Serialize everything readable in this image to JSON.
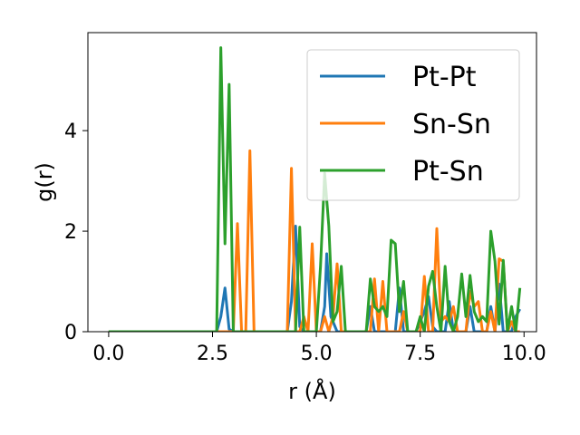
{
  "chart_data": {
    "type": "line",
    "xlabel": "r (Å)",
    "ylabel": "g(r)",
    "xlim": [
      -0.5,
      10.3
    ],
    "ylim": [
      0,
      5.95
    ],
    "xticks": [
      0.0,
      2.5,
      5.0,
      7.5,
      10.0
    ],
    "xtick_labels": [
      "0.0",
      "2.5",
      "5.0",
      "7.5",
      "10.0"
    ],
    "yticks": [
      0,
      2,
      4
    ],
    "ytick_labels": [
      "0",
      "2",
      "4"
    ],
    "grid": false,
    "legend_position": "upper right",
    "series": [
      {
        "name": "Pt-Pt",
        "color": "#1f77b4",
        "points": [
          [
            0.0,
            0
          ],
          [
            2.6,
            0
          ],
          [
            2.7,
            0.3
          ],
          [
            2.8,
            0.87
          ],
          [
            2.9,
            0.05
          ],
          [
            3.0,
            0
          ],
          [
            4.3,
            0
          ],
          [
            4.4,
            0.6
          ],
          [
            4.5,
            2.1
          ],
          [
            4.6,
            0.1
          ],
          [
            4.7,
            0
          ],
          [
            5.1,
            0
          ],
          [
            5.2,
            0.5
          ],
          [
            5.25,
            1.55
          ],
          [
            5.35,
            0.3
          ],
          [
            5.5,
            0
          ],
          [
            6.2,
            0
          ],
          [
            6.3,
            0.5
          ],
          [
            6.4,
            0
          ],
          [
            6.9,
            0
          ],
          [
            7.0,
            0.87
          ],
          [
            7.1,
            0
          ],
          [
            7.4,
            0
          ],
          [
            7.6,
            0.4
          ],
          [
            7.7,
            0.7
          ],
          [
            7.8,
            0.1
          ],
          [
            7.9,
            0
          ],
          [
            8.1,
            0
          ],
          [
            8.2,
            0.6
          ],
          [
            8.3,
            0
          ],
          [
            8.6,
            0
          ],
          [
            8.7,
            0.5
          ],
          [
            8.8,
            0
          ],
          [
            9.1,
            0
          ],
          [
            9.2,
            0.5
          ],
          [
            9.3,
            0
          ],
          [
            9.4,
            0.95
          ],
          [
            9.5,
            0
          ],
          [
            9.7,
            0
          ],
          [
            9.8,
            0.3
          ],
          [
            9.9,
            0.45
          ]
        ]
      },
      {
        "name": "Sn-Sn",
        "color": "#ff7f0e",
        "points": [
          [
            0.0,
            0
          ],
          [
            3.0,
            0
          ],
          [
            3.1,
            2.15
          ],
          [
            3.2,
            0
          ],
          [
            3.3,
            0
          ],
          [
            3.4,
            3.6
          ],
          [
            3.5,
            0
          ],
          [
            4.3,
            0
          ],
          [
            4.4,
            3.25
          ],
          [
            4.5,
            0
          ],
          [
            4.6,
            0
          ],
          [
            4.7,
            0.3
          ],
          [
            4.8,
            0
          ],
          [
            4.9,
            1.75
          ],
          [
            5.0,
            0
          ],
          [
            5.1,
            0
          ],
          [
            5.2,
            0.3
          ],
          [
            5.3,
            0
          ],
          [
            5.4,
            0.3
          ],
          [
            5.5,
            1.35
          ],
          [
            5.6,
            0
          ],
          [
            6.3,
            0
          ],
          [
            6.4,
            1.05
          ],
          [
            6.5,
            0
          ],
          [
            6.6,
            1.0
          ],
          [
            6.7,
            0
          ],
          [
            7.0,
            0
          ],
          [
            7.1,
            0.4
          ],
          [
            7.2,
            0
          ],
          [
            7.5,
            0
          ],
          [
            7.6,
            1.1
          ],
          [
            7.7,
            0
          ],
          [
            7.8,
            0
          ],
          [
            7.9,
            2.05
          ],
          [
            8.0,
            0.2
          ],
          [
            8.1,
            0.3
          ],
          [
            8.2,
            0.2
          ],
          [
            8.3,
            0.5
          ],
          [
            8.4,
            0
          ],
          [
            8.6,
            0
          ],
          [
            8.7,
            0.8
          ],
          [
            8.8,
            0.5
          ],
          [
            8.9,
            0.6
          ],
          [
            9.0,
            0
          ],
          [
            9.1,
            0
          ],
          [
            9.2,
            0.4
          ],
          [
            9.3,
            0
          ],
          [
            9.4,
            1.45
          ],
          [
            9.5,
            1.4
          ],
          [
            9.6,
            0
          ],
          [
            9.7,
            0.2
          ],
          [
            9.8,
            0
          ],
          [
            9.9,
            0
          ]
        ]
      },
      {
        "name": "Pt-Sn",
        "color": "#2ca02c",
        "points": [
          [
            0.0,
            0
          ],
          [
            2.6,
            0
          ],
          [
            2.7,
            5.65
          ],
          [
            2.8,
            1.75
          ],
          [
            2.9,
            4.92
          ],
          [
            3.0,
            0
          ],
          [
            4.5,
            0
          ],
          [
            4.6,
            2.08
          ],
          [
            4.7,
            0
          ],
          [
            5.0,
            0
          ],
          [
            5.1,
            1.3
          ],
          [
            5.2,
            3.15
          ],
          [
            5.3,
            2.1
          ],
          [
            5.4,
            0.2
          ],
          [
            5.5,
            0.4
          ],
          [
            5.6,
            1.3
          ],
          [
            5.7,
            0
          ],
          [
            6.2,
            0
          ],
          [
            6.3,
            1.05
          ],
          [
            6.4,
            0.5
          ],
          [
            6.5,
            0.4
          ],
          [
            6.6,
            0.5
          ],
          [
            6.7,
            0.3
          ],
          [
            6.8,
            1.82
          ],
          [
            6.9,
            1.75
          ],
          [
            7.0,
            0.4
          ],
          [
            7.1,
            1.0
          ],
          [
            7.2,
            0
          ],
          [
            7.4,
            0
          ],
          [
            7.5,
            0.3
          ],
          [
            7.6,
            0
          ],
          [
            7.7,
            0.9
          ],
          [
            7.8,
            1.2
          ],
          [
            7.9,
            0.5
          ],
          [
            8.0,
            0
          ],
          [
            8.1,
            1.3
          ],
          [
            8.2,
            0.2
          ],
          [
            8.3,
            0
          ],
          [
            8.4,
            0.3
          ],
          [
            8.5,
            1.15
          ],
          [
            8.6,
            0.3
          ],
          [
            8.7,
            1.12
          ],
          [
            8.8,
            0.4
          ],
          [
            8.9,
            0.2
          ],
          [
            9.0,
            0.3
          ],
          [
            9.1,
            0.2
          ],
          [
            9.2,
            2.0
          ],
          [
            9.3,
            1.4
          ],
          [
            9.4,
            0.15
          ],
          [
            9.5,
            1.42
          ],
          [
            9.6,
            0
          ],
          [
            9.7,
            0.5
          ],
          [
            9.8,
            0
          ],
          [
            9.9,
            0.87
          ]
        ]
      }
    ]
  }
}
